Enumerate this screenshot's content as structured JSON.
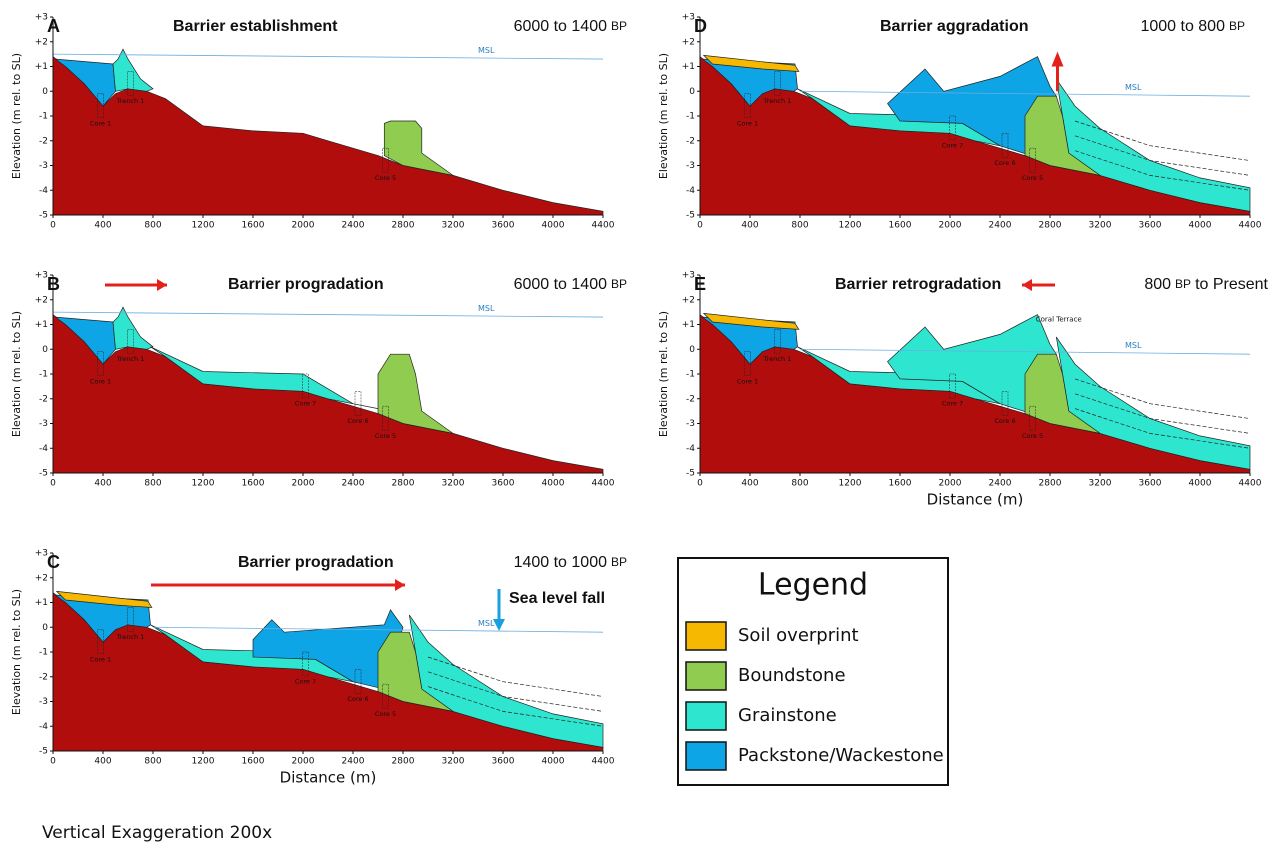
{
  "axis": {
    "y_label": "Elevation (m rel. to SL)",
    "y_ticks": [
      "+3",
      "+2",
      "+1",
      "0",
      "-1",
      "-2",
      "-3",
      "-4",
      "-5"
    ],
    "x_ticks": [
      0,
      400,
      800,
      1200,
      1600,
      2000,
      2400,
      2800,
      3200,
      3600,
      4000,
      4400
    ],
    "x_label": "Distance (m)"
  },
  "panels": [
    {
      "letter": "A",
      "title": "Barrier establishment",
      "age": [
        "6000 to 1400",
        "BP"
      ],
      "msl": "MSL",
      "cores": [
        "Core 1",
        "Trench 1",
        "Core 5"
      ]
    },
    {
      "letter": "B",
      "title": "Barrier progradation",
      "age": [
        "6000 to 1400",
        "BP"
      ],
      "msl": "MSL",
      "cores": [
        "Core 1",
        "Trench 1",
        "Core 7",
        "Core 6",
        "Core 5"
      ]
    },
    {
      "letter": "C",
      "title": "Barrier progradation",
      "age": [
        "1400 to 1000",
        "BP"
      ],
      "msl": "MSL",
      "cores": [
        "Core 1",
        "Trench 1",
        "Core 7",
        "Core 6",
        "Core 5"
      ],
      "note": "Sea level fall"
    },
    {
      "letter": "D",
      "title": "Barrier aggradation",
      "age": [
        "1000 to 800",
        "BP"
      ],
      "msl": "MSL",
      "cores": [
        "Core 1",
        "Trench 1",
        "Core 7",
        "Core 6",
        "Core 5"
      ]
    },
    {
      "letter": "E",
      "title": "Barrier retrogradation",
      "age": [
        "800",
        "BP",
        "to Present"
      ],
      "msl": "MSL",
      "cores": [
        "Core 1",
        "Trench 1",
        "Core 7",
        "Core 6",
        "Core 5"
      ],
      "note": "Coral Terrace"
    }
  ],
  "legend": {
    "title": "Legend",
    "items": [
      {
        "label": "Soil overprint",
        "color": "#f6b800"
      },
      {
        "label": "Boundstone",
        "color": "#8fcc4f"
      },
      {
        "label": "Grainstone",
        "color": "#2ee6d0"
      },
      {
        "label": "Packstone/Wackestone",
        "color": "#0ea5e6"
      }
    ]
  },
  "footer": "Vertical Exaggeration 200x"
}
